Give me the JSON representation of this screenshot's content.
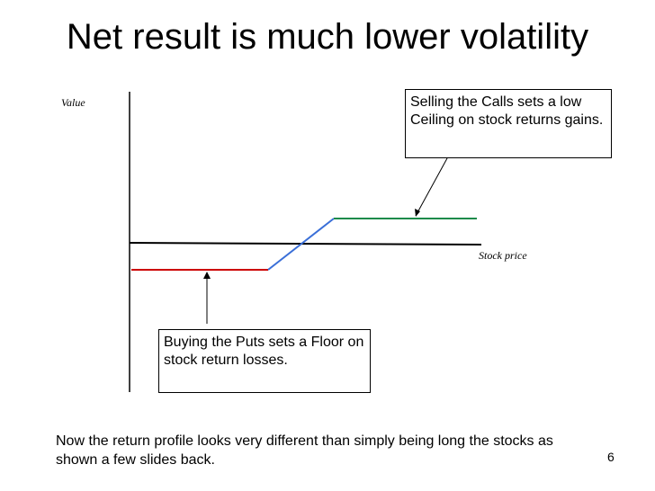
{
  "title": "Net result is much lower volatility",
  "y_axis_label": "Value",
  "x_axis_label": "Stock price",
  "callout_calls": "Selling the Calls sets a low Ceiling on stock returns gains.",
  "callout_puts": "Buying the Puts sets a Floor on stock return losses.",
  "footer_note": "Now the return profile looks very different than simply being long the stocks as shown a few slides back.",
  "page_number": "6",
  "colors": {
    "floor_segment": "#cc0000",
    "rising_segment": "#3a6fd8",
    "ceiling_segment": "#1a8a4a",
    "axes": "#000000"
  }
}
